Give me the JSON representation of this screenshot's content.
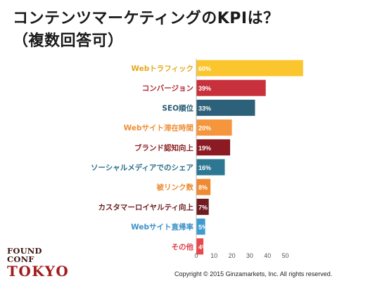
{
  "title": {
    "line1": "コンテンツマーケティングのKPIは？",
    "line2": "（複数回答可）"
  },
  "chart_data": {
    "type": "bar",
    "orientation": "horizontal",
    "categories": [
      "Webトラフィック",
      "コンバージョン",
      "SEO順位",
      "Webサイト滞在時間",
      "ブランド認知向上",
      "ソーシャルメディアでのシェア",
      "被リンク数",
      "カスタマーロイヤルティ向上",
      "Webサイト直帰率",
      "その他"
    ],
    "values": [
      60,
      39,
      33,
      20,
      19,
      16,
      8,
      7,
      5,
      4
    ],
    "value_labels": [
      "60%",
      "39%",
      "33%",
      "20%",
      "19%",
      "16%",
      "8%",
      "7%",
      "5%",
      "4%"
    ],
    "colors": [
      "#fbc52e",
      "#c8303c",
      "#2d6079",
      "#f5953c",
      "#8b1a22",
      "#2e7792",
      "#ef8a33",
      "#6e1c20",
      "#3d9bd0",
      "#e8474b"
    ],
    "label_colors": [
      "#e5a91c",
      "#b22a2f",
      "#245b72",
      "#ee8d31",
      "#8e2226",
      "#2b6f8b",
      "#ec8a30",
      "#6f1f22",
      "#3a8fc8",
      "#e0404a"
    ],
    "xticks": [
      0,
      10,
      20,
      30,
      40,
      50
    ],
    "xlim": [
      0,
      60
    ],
    "xlabel": "",
    "ylabel": "",
    "legend": "none",
    "grid": false
  },
  "logo": {
    "line1": "FOUND CONF",
    "line2": "TOKYO"
  },
  "copyright": "Copyright © 2015 Ginzamarkets, Inc. All rights reserved."
}
